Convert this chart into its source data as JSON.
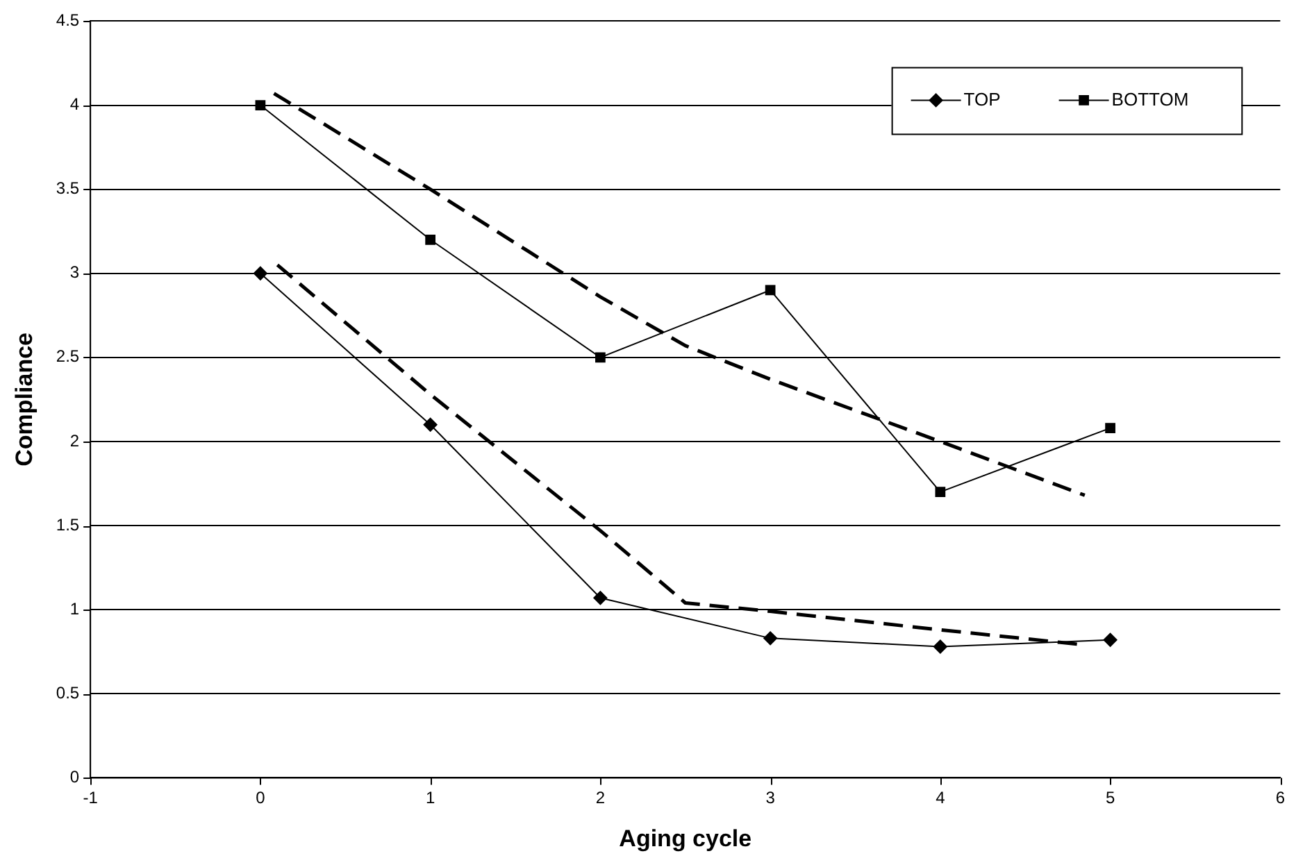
{
  "chart_data": {
    "type": "line",
    "xlabel": "Aging cycle",
    "ylabel": "Compliance",
    "xlim": [
      -1,
      6
    ],
    "xticks": [
      -1,
      0,
      1,
      2,
      3,
      4,
      5,
      6
    ],
    "ylim": [
      0,
      4.5
    ],
    "yticks": [
      0,
      0.5,
      1,
      1.5,
      2,
      2.5,
      3,
      3.5,
      4,
      4.5
    ],
    "grid": "y",
    "legend": "top right",
    "series": [
      {
        "name": "TOP",
        "color": "#000000",
        "marker": "diamond",
        "line_style": "solid",
        "x": [
          0,
          1,
          2,
          3,
          4,
          5
        ],
        "values": [
          3,
          2.1,
          1.07,
          0.83,
          0.78,
          0.82
        ]
      },
      {
        "name": "BOTTOM",
        "color": "#000000",
        "marker": "square",
        "line_style": "solid",
        "x": [
          0,
          1,
          2,
          3,
          4,
          5
        ],
        "values": [
          4,
          3.2,
          2.5,
          2.9,
          1.7,
          2.08
        ]
      },
      {
        "color": "#000000",
        "marker": "none",
        "line_style": "dashed",
        "x": [
          0.1,
          1,
          2,
          2.5,
          3,
          4,
          4.85
        ],
        "values": [
          3.05,
          2.28,
          1.47,
          1.04,
          0.99,
          0.88,
          0.79
        ]
      },
      {
        "color": "#000000",
        "marker": "none",
        "line_style": "dashed",
        "x": [
          0.08,
          1,
          2,
          2.5,
          3,
          4,
          4.85
        ],
        "values": [
          4.07,
          3.5,
          2.86,
          2.57,
          2.37,
          2.0,
          1.68
        ]
      }
    ]
  }
}
